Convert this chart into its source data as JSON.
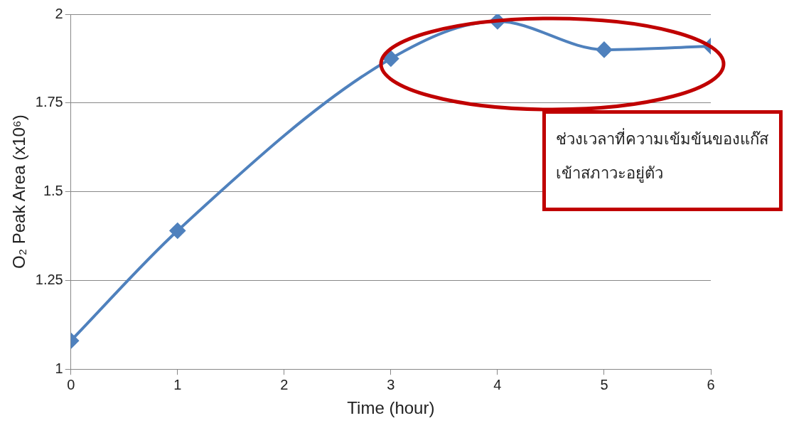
{
  "chart_data": {
    "type": "line",
    "xlabel": "Time (hour)",
    "ylabel": "O₂ Peak Area (x10⁶)",
    "x": [
      0,
      1,
      3,
      4,
      5,
      6
    ],
    "series": [
      {
        "color": "#4f81bd",
        "values": [
          1.08,
          1.39,
          1.875,
          1.98,
          1.9,
          1.91
        ]
      }
    ],
    "xlim": [
      0,
      6
    ],
    "xticks": [
      0,
      1,
      2,
      3,
      4,
      5,
      6
    ],
    "ylim": [
      1,
      2
    ],
    "yticks": [
      1,
      1.25,
      1.5,
      1.75,
      2
    ],
    "grid": "y",
    "marker": "diamond",
    "line_style": "solid",
    "legend": false,
    "annotations": [
      "ช่วงเวลาที่ความเข้มข้นของแก๊สเข้าสภาวะอยู่ตัว"
    ]
  }
}
